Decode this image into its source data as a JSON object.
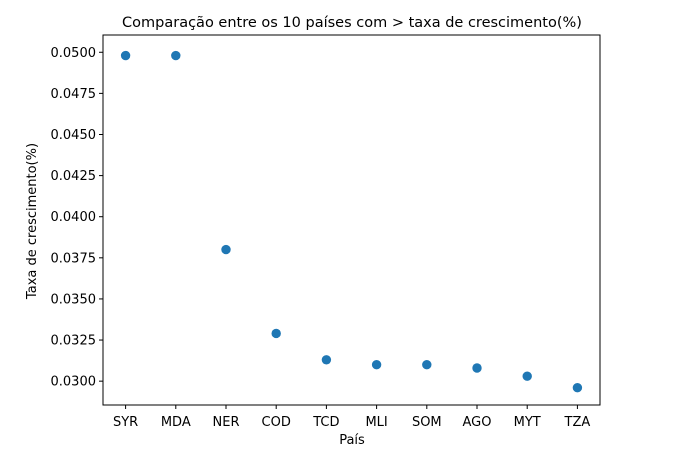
{
  "chart_data": {
    "type": "scatter",
    "title": "Comparação entre os 10 países com > taxa de crescimento(%)",
    "xlabel": "País",
    "ylabel": "Taxa de crescimento(%)",
    "categories": [
      "SYR",
      "MDA",
      "NER",
      "COD",
      "TCD",
      "MLI",
      "SOM",
      "AGO",
      "MYT",
      "TZA"
    ],
    "series": [
      {
        "values": [
          0.0498,
          0.0498,
          0.038,
          0.0329,
          0.0313,
          0.031,
          0.031,
          0.0308,
          0.0303,
          0.0296
        ]
      }
    ],
    "yticks": [
      "0.0300",
      "0.0325",
      "0.0350",
      "0.0375",
      "0.0400",
      "0.0425",
      "0.0450",
      "0.0475",
      "0.0500"
    ],
    "ylim": [
      0.02855,
      0.05105
    ],
    "grid": false,
    "legend": "none",
    "marker_color": "#1f77b4"
  }
}
